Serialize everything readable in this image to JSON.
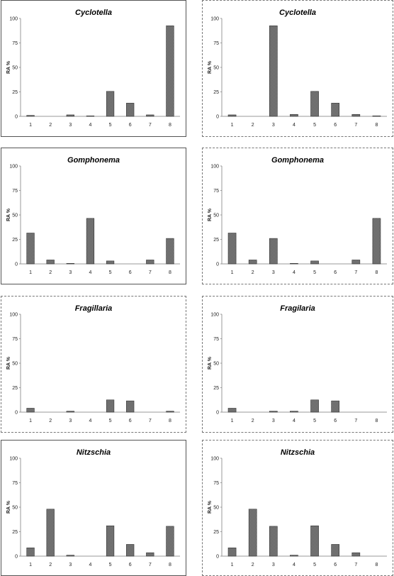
{
  "chart_data": [
    {
      "type": "bar",
      "title": "Cyclotella",
      "ylabel": "RA %",
      "categories": [
        "1",
        "2",
        "3",
        "4",
        "5",
        "6",
        "7",
        "8"
      ],
      "values": [
        1,
        0,
        1.5,
        0.5,
        25.5,
        13.5,
        1.5,
        92.5
      ],
      "ylim": [
        0,
        100
      ],
      "yticks": [
        "0",
        "25",
        "50",
        "75",
        "100"
      ],
      "grid": false,
      "color": "#555555"
    },
    {
      "type": "bar",
      "title": "Cyclotella",
      "ylabel": "RA %",
      "categories": [
        "1",
        "2",
        "3",
        "4",
        "5",
        "6",
        "7",
        "8"
      ],
      "values": [
        1.5,
        0,
        92.5,
        2,
        25.5,
        13.5,
        2,
        0.5
      ],
      "ylim": [
        0,
        100
      ],
      "yticks": [
        "0",
        "25",
        "50",
        "75",
        "100"
      ],
      "grid": false,
      "color": "#555555"
    },
    {
      "type": "bar",
      "title": "Gomphonema",
      "ylabel": "RA %",
      "categories": [
        "1",
        "2",
        "3",
        "4",
        "5",
        "6",
        "7",
        "8"
      ],
      "values": [
        31.5,
        4,
        0.5,
        46.5,
        3,
        0,
        4,
        26
      ],
      "ylim": [
        0,
        100
      ],
      "yticks": [
        "0",
        "25",
        "50",
        "75",
        "100"
      ],
      "grid": false,
      "color": "#555555"
    },
    {
      "type": "bar",
      "title": "Gomphonema",
      "ylabel": "RA %",
      "categories": [
        "1",
        "2",
        "3",
        "4",
        "5",
        "6",
        "7",
        "8"
      ],
      "values": [
        31.5,
        4,
        26,
        0.5,
        3,
        0,
        4,
        46.5
      ],
      "ylim": [
        0,
        100
      ],
      "yticks": [
        "0",
        "25",
        "50",
        "75",
        "100"
      ],
      "grid": false,
      "color": "#555555"
    },
    {
      "type": "bar",
      "title": "Fragillaria",
      "ylabel": "RA %",
      "categories": [
        "1",
        "2",
        "3",
        "4",
        "5",
        "6",
        "7",
        "8"
      ],
      "values": [
        4,
        0,
        1,
        0,
        12.5,
        11.5,
        0,
        1
      ],
      "ylim": [
        0,
        100
      ],
      "yticks": [
        "0",
        "25",
        "50",
        "75",
        "100"
      ],
      "grid": false,
      "color": "#555555"
    },
    {
      "type": "bar",
      "title": "Fragilaria",
      "ylabel": "RA %",
      "categories": [
        "1",
        "2",
        "3",
        "4",
        "5",
        "6",
        "7",
        "8"
      ],
      "values": [
        4,
        0,
        1,
        1,
        12.5,
        11.5,
        0,
        0
      ],
      "ylim": [
        0,
        100
      ],
      "yticks": [
        "0",
        "25",
        "50",
        "75",
        "100"
      ],
      "grid": false,
      "color": "#555555"
    },
    {
      "type": "bar",
      "title": "Nitzschia",
      "ylabel": "RA %",
      "categories": [
        "1",
        "2",
        "3",
        "4",
        "5",
        "6",
        "7",
        "8"
      ],
      "values": [
        8.5,
        48,
        1,
        0,
        31,
        12,
        3.5,
        30.5
      ],
      "ylim": [
        0,
        100
      ],
      "yticks": [
        "0",
        "25",
        "50",
        "75",
        "100"
      ],
      "grid": false,
      "color": "#555555"
    },
    {
      "type": "bar",
      "title": "Nitzschia",
      "ylabel": "RA %",
      "categories": [
        "1",
        "2",
        "3",
        "4",
        "5",
        "6",
        "7",
        "8"
      ],
      "values": [
        8.5,
        48,
        30.5,
        1,
        31,
        12,
        3.5,
        0
      ],
      "ylim": [
        0,
        100
      ],
      "yticks": [
        "0",
        "25",
        "50",
        "75",
        "100"
      ],
      "grid": false,
      "color": "#555555"
    }
  ]
}
